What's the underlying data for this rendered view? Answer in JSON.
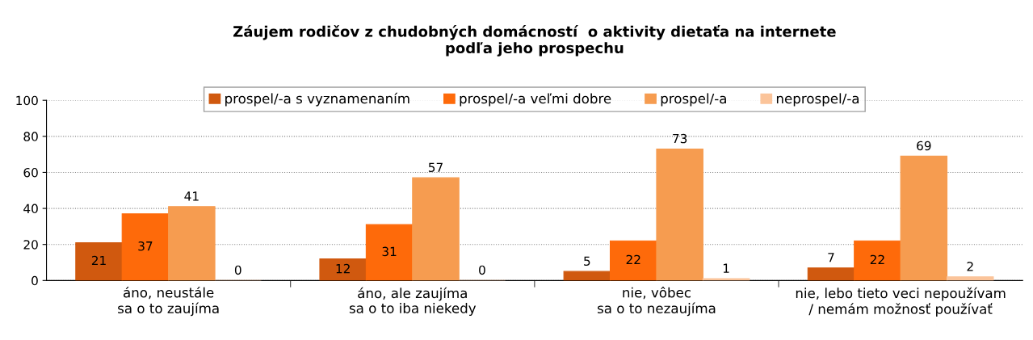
{
  "chart_data": {
    "type": "bar",
    "title": "Záujem rodičov z chudobných domácností  o aktivity dietaťa na internete\npodľa jeho prospechu",
    "categories": [
      "áno, neustále\nsa o to zaujíma",
      "áno, ale zaujíma\nsa o to iba niekedy",
      "nie, vôbec\nsa o to nezaujíma",
      "nie, lebo tieto veci nepoužívam\n/ nemám možnosť používať"
    ],
    "series": [
      {
        "name": "prospel/-a s vyznamenaním",
        "color": "#d0590f",
        "values": [
          21,
          12,
          5,
          7
        ]
      },
      {
        "name": "prospel/-a veľmi dobre",
        "color": "#fe6a0a",
        "values": [
          37,
          31,
          22,
          22
        ]
      },
      {
        "name": "prospel/-a",
        "color": "#f69c50",
        "values": [
          41,
          57,
          73,
          69
        ]
      },
      {
        "name": "neprospel/-a",
        "color": "#fbc49a",
        "values": [
          0,
          0,
          1,
          2
        ]
      }
    ],
    "ylim": [
      0,
      100
    ],
    "yticks": [
      0,
      20,
      40,
      60,
      80,
      100
    ],
    "grid": "y",
    "legend": "top",
    "data_labels": true
  }
}
